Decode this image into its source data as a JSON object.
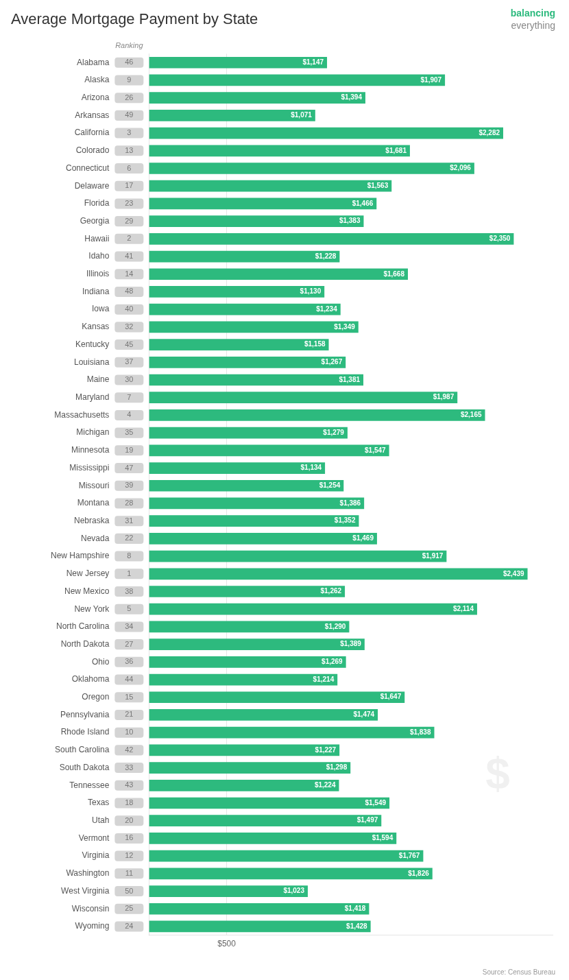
{
  "chart_data": {
    "type": "bar",
    "orientation": "horizontal",
    "title": "Average Mortgage Payment by State",
    "annotations": [
      "Ranking",
      "balancing",
      "everything",
      "$",
      "Source: Census Bureau"
    ],
    "categories": [
      "Alabama",
      "Alaska",
      "Arizona",
      "Arkansas",
      "California",
      "Colorado",
      "Connecticut",
      "Delaware",
      "Florida",
      "Georgia",
      "Hawaii",
      "Idaho",
      "Illinois",
      "Indiana",
      "Iowa",
      "Kansas",
      "Kentucky",
      "Louisiana",
      "Maine",
      "Maryland",
      "Massachusetts",
      "Michigan",
      "Minnesota",
      "Mississippi",
      "Missouri",
      "Montana",
      "Nebraska",
      "Nevada",
      "New Hampshire",
      "New Jersey",
      "New Mexico",
      "New York",
      "North Carolina",
      "North Dakota",
      "Ohio",
      "Oklahoma",
      "Oregon",
      "Pennsylvania",
      "Rhode Island",
      "South Carolina",
      "South Dakota",
      "Tennessee",
      "Texas",
      "Utah",
      "Vermont",
      "Virginia",
      "Washington",
      "West Virginia",
      "Wisconsin",
      "Wyoming"
    ],
    "values": [
      1147,
      1907,
      1394,
      1071,
      2282,
      1681,
      2096,
      1563,
      1466,
      1383,
      2350,
      1228,
      1668,
      1130,
      1234,
      1349,
      1158,
      1267,
      1381,
      1987,
      2165,
      1279,
      1547,
      1134,
      1254,
      1386,
      1352,
      1469,
      1917,
      2439,
      1262,
      2114,
      1290,
      1389,
      1269,
      1214,
      1647,
      1474,
      1838,
      1227,
      1298,
      1224,
      1549,
      1497,
      1594,
      1767,
      1826,
      1023,
      1418,
      1428
    ],
    "value_labels": [
      "$1,147",
      "$1,907",
      "$1,394",
      "$1,071",
      "$2,282",
      "$1,681",
      "$2,096",
      "$1,563",
      "$1,466",
      "$1,383",
      "$2,350",
      "$1,228",
      "$1,668",
      "$1,130",
      "$1,234",
      "$1,349",
      "$1,158",
      "$1,267",
      "$1,381",
      "$1,987",
      "$2,165",
      "$1,279",
      "$1,547",
      "$1,134",
      "$1,254",
      "$1,386",
      "$1,352",
      "$1,469",
      "$1,917",
      "$2,439",
      "$1,262",
      "$2,114",
      "$1,290",
      "$1,389",
      "$1,269",
      "$1,214",
      "$1,647",
      "$1,474",
      "$1,838",
      "$1,227",
      "$1,298",
      "$1,224",
      "$1,549",
      "$1,497",
      "$1,594",
      "$1,767",
      "$1,826",
      "$1,023",
      "$1,418",
      "$1,428"
    ],
    "rankings": [
      46,
      9,
      26,
      49,
      3,
      13,
      6,
      17,
      23,
      29,
      2,
      41,
      14,
      48,
      40,
      32,
      45,
      37,
      30,
      7,
      4,
      35,
      19,
      47,
      39,
      28,
      31,
      22,
      8,
      1,
      38,
      5,
      34,
      27,
      36,
      44,
      15,
      21,
      10,
      42,
      33,
      43,
      18,
      20,
      16,
      12,
      11,
      50,
      25,
      24
    ],
    "color": "#2dba7e",
    "xlim": [
      0,
      2600
    ],
    "xticks": [
      {
        "value": 500,
        "label": "$500"
      }
    ],
    "grid": true,
    "data_labels": true
  }
}
